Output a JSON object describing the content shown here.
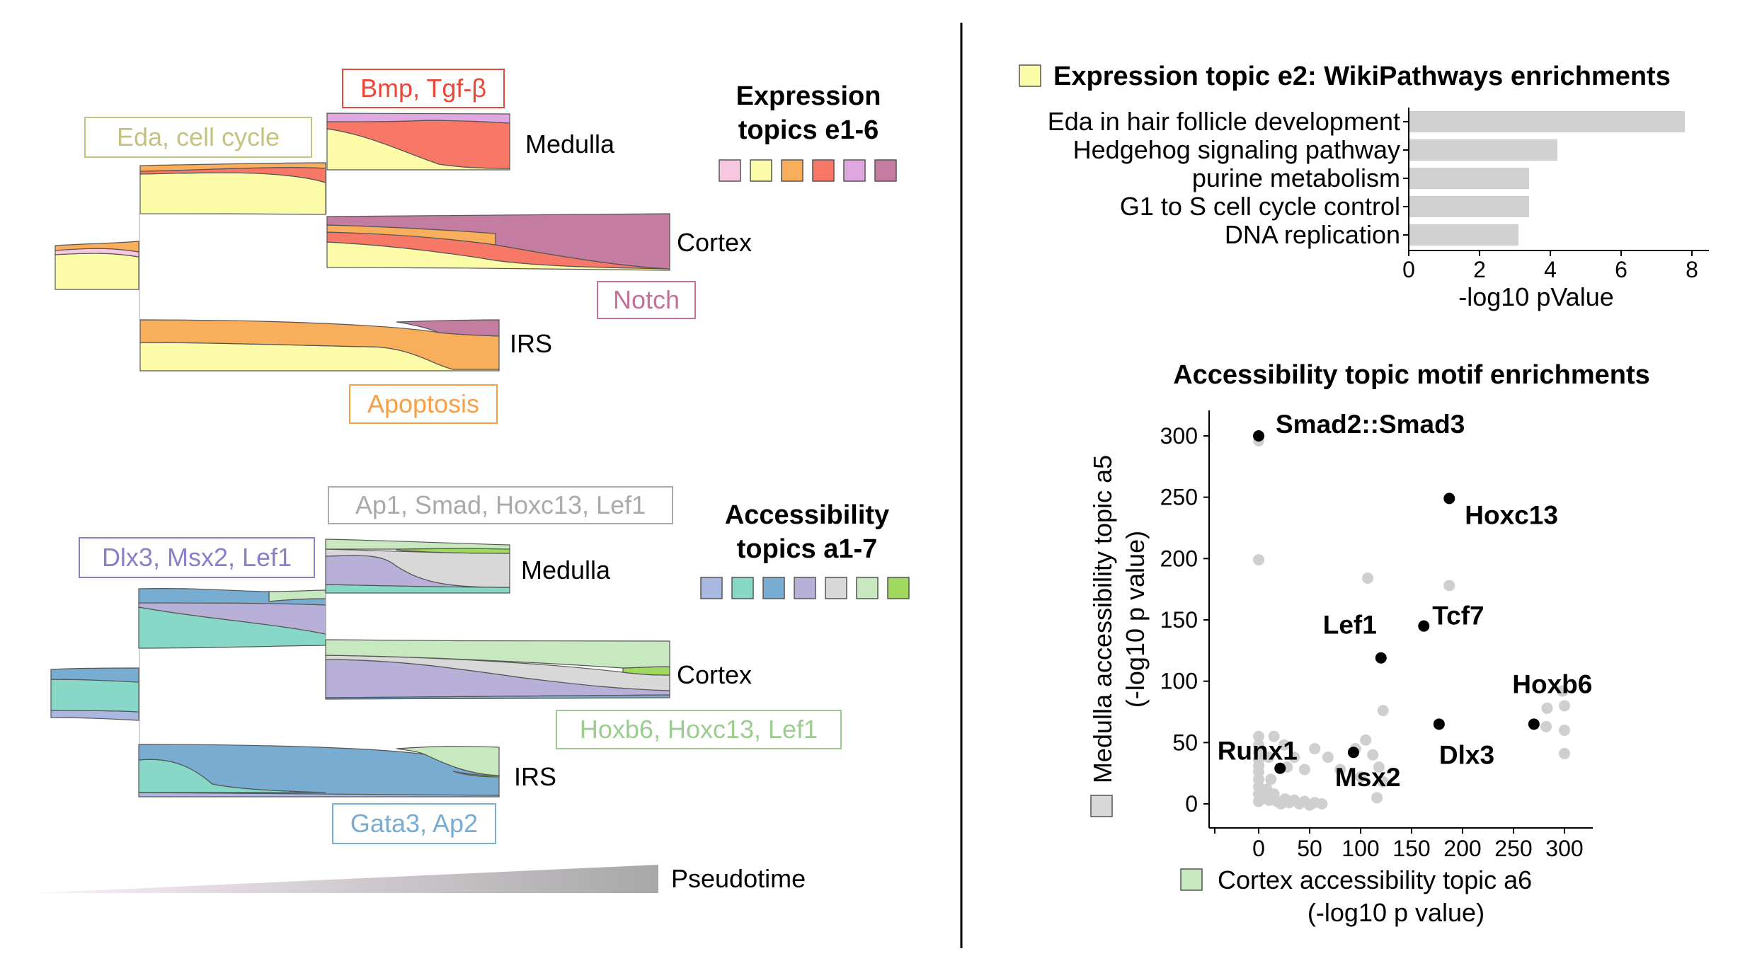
{
  "colors": {
    "e": [
      "#f8c8e0",
      "#fcfca8",
      "#f8ae5a",
      "#f87868",
      "#e0a8e0",
      "#c47ca0"
    ],
    "a": [
      "#a8b8e0",
      "#88d8c8",
      "#78acd0",
      "#b8b0d8",
      "#d8d8d8",
      "#c8e8c0",
      "#a0d860"
    ],
    "nonsig": "#cfcfcf",
    "sig": "#000000",
    "bar": "#d0d0d0"
  },
  "expression": {
    "title": [
      "Expression",
      "topics e1-6"
    ],
    "branch_labels": {
      "medulla": "Medulla",
      "cortex": "Cortex",
      "irs": "IRS"
    },
    "annotations": {
      "eda": "Eda, cell cycle",
      "bmp": "Bmp, Tgf-β",
      "notch": "Notch",
      "apoptosis": "Apoptosis"
    }
  },
  "accessibility": {
    "title": [
      "Accessibility",
      "topics a1-7"
    ],
    "branch_labels": {
      "medulla": "Medulla",
      "cortex": "Cortex",
      "irs": "IRS"
    },
    "annotations": {
      "dlx": "Dlx3, Msx2, Lef1",
      "ap1": "Ap1, Smad, Hoxc13, Lef1",
      "hoxb6": "Hoxb6, Hoxc13, Lef1",
      "gata": "Gata3, Ap2"
    }
  },
  "pseudotime": {
    "label": "Pseudotime"
  },
  "chart_data": [
    {
      "type": "bar",
      "orientation": "horizontal",
      "title": "Expression topic e2: WikiPathways enrichments",
      "categories": [
        "Eda in hair follicle development",
        "Hedgehog signaling pathway",
        "purine metabolism",
        "G1 to S cell cycle control",
        "DNA replication"
      ],
      "values": [
        7.8,
        4.2,
        3.4,
        3.4,
        3.1
      ],
      "xlabel": "-log10 pValue",
      "xlim": [
        0,
        8
      ],
      "xticks": [
        0,
        2,
        4,
        6,
        8
      ]
    },
    {
      "type": "scatter",
      "title": "Accessibility topic motif enrichments",
      "xlabel": [
        "Cortex accessibility topic a6",
        "(-log10 p value)"
      ],
      "ylabel": [
        "Medulla accessibility topic a5",
        "(-log10 p value)"
      ],
      "xticks": [
        0,
        50,
        100,
        150,
        200,
        250,
        300
      ],
      "yticks": [
        0,
        50,
        100,
        150,
        200,
        250,
        300
      ],
      "xlim": [
        -50,
        320
      ],
      "ylim": [
        -20,
        320
      ],
      "labeled_points": [
        {
          "label": "Smad2::Smad3",
          "x": 0,
          "y": 300
        },
        {
          "label": "Hoxc13",
          "x": 187,
          "y": 249
        },
        {
          "label": "Tcf7",
          "x": 162,
          "y": 145
        },
        {
          "label": "Lef1",
          "x": 120,
          "y": 119
        },
        {
          "label": "Hoxb6",
          "x": 270,
          "y": 65
        },
        {
          "label": "Dlx3",
          "x": 177,
          "y": 65
        },
        {
          "label": "Msx2",
          "x": 93,
          "y": 42
        },
        {
          "label": "Runx1",
          "x": 21,
          "y": 29
        }
      ],
      "other_points": [
        [
          0,
          296
        ],
        [
          0,
          199
        ],
        [
          107,
          184
        ],
        [
          187,
          178
        ],
        [
          122,
          76
        ],
        [
          0,
          55
        ],
        [
          0,
          48
        ],
        [
          0,
          42
        ],
        [
          0,
          36
        ],
        [
          0,
          31
        ],
        [
          0,
          26
        ],
        [
          0,
          20
        ],
        [
          0,
          14
        ],
        [
          0,
          8
        ],
        [
          0,
          2
        ],
        [
          5,
          5
        ],
        [
          8,
          12
        ],
        [
          10,
          3
        ],
        [
          12,
          20
        ],
        [
          15,
          8
        ],
        [
          18,
          2
        ],
        [
          22,
          0
        ],
        [
          26,
          4
        ],
        [
          30,
          1
        ],
        [
          35,
          3
        ],
        [
          40,
          0
        ],
        [
          45,
          2
        ],
        [
          50,
          -1
        ],
        [
          55,
          1
        ],
        [
          62,
          0
        ],
        [
          28,
          30
        ],
        [
          35,
          38
        ],
        [
          45,
          28
        ],
        [
          55,
          45
        ],
        [
          68,
          38
        ],
        [
          80,
          28
        ],
        [
          95,
          45
        ],
        [
          105,
          52
        ],
        [
          112,
          40
        ],
        [
          118,
          30
        ],
        [
          122,
          18
        ],
        [
          116,
          5
        ],
        [
          100,
          22
        ],
        [
          15,
          55
        ],
        [
          25,
          48
        ],
        [
          10,
          38
        ],
        [
          298,
          92
        ],
        [
          300,
          80
        ],
        [
          283,
          78
        ],
        [
          300,
          60
        ],
        [
          300,
          41
        ],
        [
          282,
          63
        ]
      ]
    }
  ]
}
